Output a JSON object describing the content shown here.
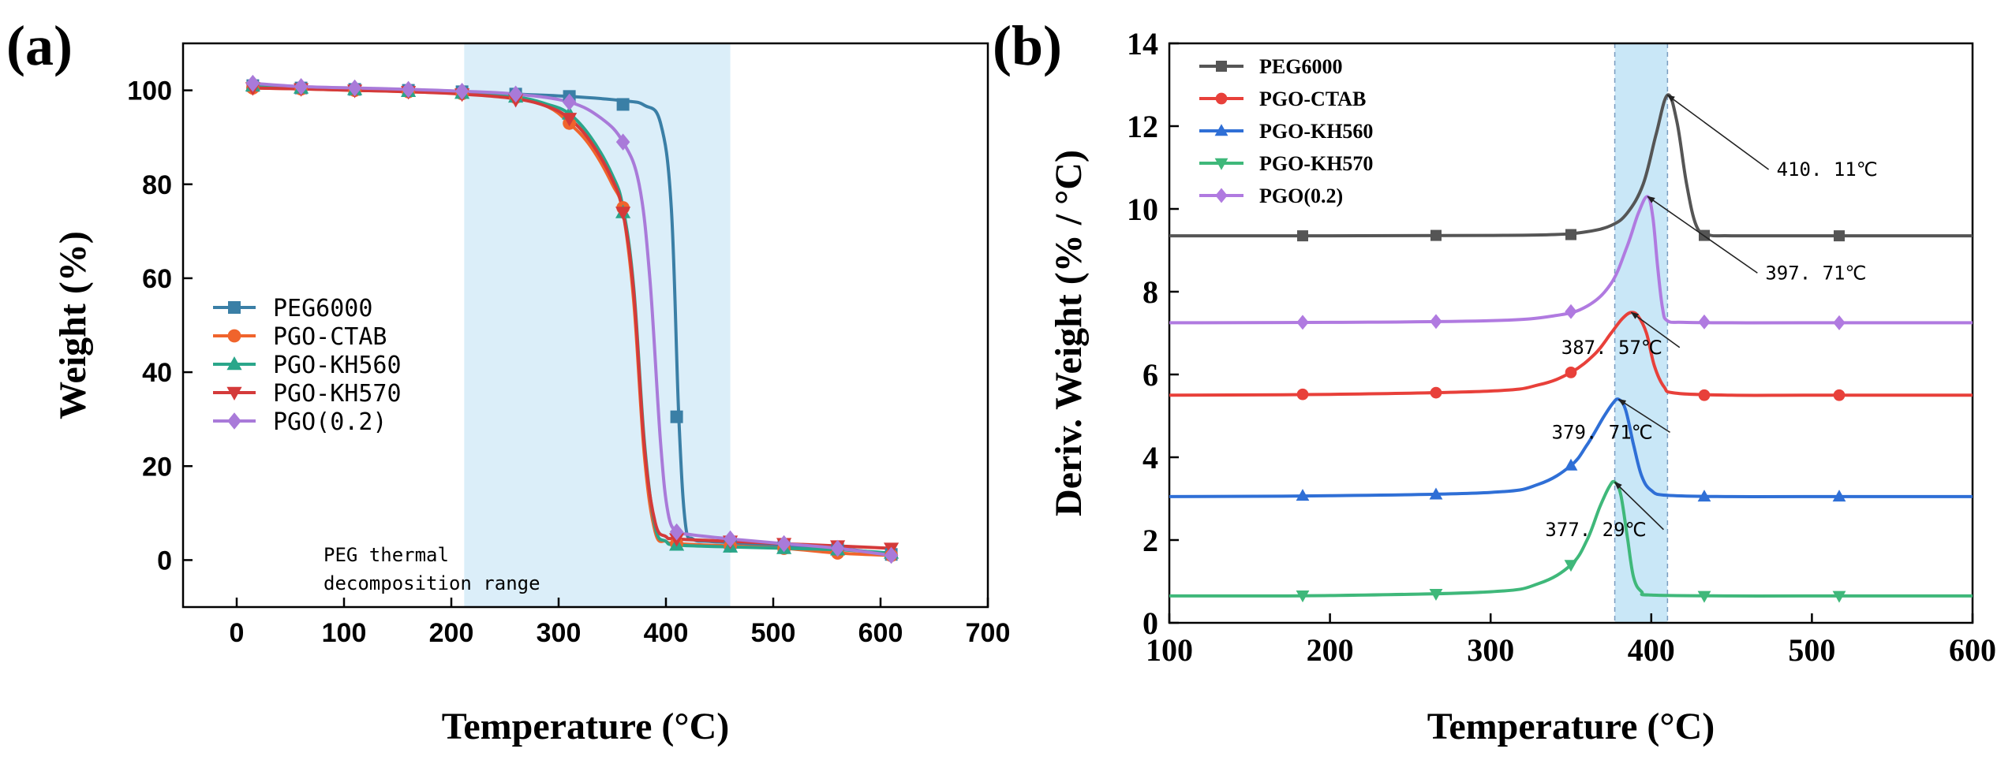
{
  "figure": {
    "panel_a_label": "(a)",
    "panel_b_label": "(b)"
  },
  "colors": {
    "PEG6000": "#3a7fa6",
    "PGO-CTAB": "#f0642c",
    "PGO-KH560": "#2aa68a",
    "PGO-KH570": "#d43a3a",
    "PGO(0.2)": "#a97ad9",
    "shade": "#cfe8f7",
    "b_PEG6000": "#555555",
    "b_PGO-CTAB": "#e8403a",
    "b_PGO-KH560": "#2f6fd6",
    "b_PGO-KH570": "#3fb87a",
    "b_PGO(0.2)": "#b07ae0"
  },
  "chart_data": [
    {
      "type": "line",
      "panel": "a",
      "title": "",
      "xlabel": "Temperature (°C)",
      "ylabel": "Weight (%)",
      "xlim": [
        -50,
        700
      ],
      "ylim": [
        -10,
        110
      ],
      "xticks": [
        0,
        100,
        200,
        300,
        400,
        500,
        600,
        700
      ],
      "yticks": [
        0,
        20,
        40,
        60,
        80,
        100
      ],
      "shaded_region": {
        "x": [
          212,
          460
        ],
        "label_line1": "PEG thermal",
        "label_line2": "decomposition range"
      },
      "legend": [
        "PEG6000",
        "PGO-CTAB",
        "PGO-KH560",
        "PGO-KH570",
        "PGO(0.2)"
      ],
      "series": [
        {
          "name": "PEG6000",
          "marker": "square",
          "x": [
            15,
            60,
            110,
            160,
            210,
            260,
            310,
            360,
            380,
            395,
            405,
            412,
            418,
            425,
            440,
            460,
            510,
            560,
            610
          ],
          "y": [
            101,
            100.5,
            100.2,
            100,
            99.7,
            99.2,
            98.7,
            97.8,
            96.8,
            93,
            75,
            30.5,
            8,
            4.5,
            4,
            3.7,
            3,
            2.5,
            1.2
          ],
          "markers_x": [
            15,
            60,
            110,
            160,
            210,
            260,
            310,
            360,
            410,
            460,
            510,
            560,
            610
          ],
          "markers_y": [
            101,
            100.5,
            100.2,
            100,
            99.7,
            99.2,
            98.7,
            97,
            30.5,
            3.7,
            3,
            2.5,
            1.2
          ]
        },
        {
          "name": "PGO-CTAB",
          "marker": "circle",
          "x": [
            15,
            60,
            110,
            160,
            210,
            260,
            290,
            310,
            330,
            350,
            360,
            370,
            380,
            390,
            400,
            410,
            460,
            510,
            560,
            610
          ],
          "y": [
            100.5,
            100.3,
            100,
            99.7,
            99.3,
            98.5,
            96.5,
            93,
            88,
            80,
            74,
            55,
            22,
            6,
            4,
            3.5,
            3,
            2.5,
            1.5,
            1
          ],
          "markers_x": [
            15,
            60,
            110,
            160,
            210,
            260,
            310,
            360,
            410,
            460,
            510,
            560,
            610
          ],
          "markers_y": [
            100.5,
            100.3,
            100,
            99.7,
            99.3,
            98.5,
            93,
            75,
            3.5,
            3,
            2.5,
            1.5,
            1
          ]
        },
        {
          "name": "PGO-KH560",
          "marker": "triangle-up",
          "x": [
            15,
            60,
            110,
            160,
            210,
            260,
            290,
            310,
            330,
            350,
            360,
            370,
            380,
            390,
            400,
            410,
            460,
            510,
            560,
            610
          ],
          "y": [
            101,
            100.5,
            100.2,
            99.8,
            99.4,
            98.6,
            97,
            95,
            90,
            82,
            75,
            58,
            25,
            7,
            4,
            3.2,
            2.8,
            2.5,
            2.2,
            1.5
          ],
          "markers_x": [
            15,
            60,
            110,
            160,
            210,
            260,
            310,
            360,
            410,
            460,
            510,
            560,
            610
          ],
          "markers_y": [
            101,
            100.5,
            100.2,
            99.8,
            99.4,
            98.6,
            95,
            74,
            3.2,
            2.8,
            2.5,
            2.2,
            1.5
          ]
        },
        {
          "name": "PGO-KH570",
          "marker": "triangle-down",
          "x": [
            15,
            60,
            110,
            160,
            210,
            260,
            290,
            310,
            330,
            350,
            360,
            370,
            380,
            390,
            400,
            410,
            460,
            510,
            560,
            610
          ],
          "y": [
            100.5,
            100.3,
            100,
            99.7,
            99.2,
            98.2,
            96.5,
            94,
            89,
            81,
            74,
            57,
            24,
            8,
            5,
            4.5,
            4,
            3.5,
            3,
            2.5
          ],
          "markers_x": [
            15,
            60,
            110,
            160,
            210,
            260,
            310,
            360,
            410,
            460,
            510,
            560,
            610
          ],
          "markers_y": [
            100.5,
            100.3,
            100,
            99.7,
            99.2,
            98,
            94,
            74,
            4.5,
            4,
            3.5,
            3,
            2.5
          ]
        },
        {
          "name": "PGO(0.2)",
          "marker": "diamond",
          "x": [
            15,
            60,
            110,
            160,
            210,
            260,
            310,
            340,
            360,
            375,
            385,
            395,
            402,
            410,
            420,
            460,
            510,
            560,
            610
          ],
          "y": [
            101.5,
            100.8,
            100.5,
            100.2,
            99.8,
            99.2,
            97.5,
            94,
            89,
            80,
            60,
            25,
            10,
            6,
            5.5,
            4.5,
            3.5,
            2.5,
            1
          ],
          "markers_x": [
            15,
            60,
            110,
            160,
            210,
            260,
            310,
            360,
            410,
            460,
            510,
            560,
            610
          ],
          "markers_y": [
            101.5,
            100.8,
            100.5,
            100.2,
            99.8,
            99.2,
            97.5,
            89,
            6,
            4.5,
            3.5,
            2.5,
            1
          ]
        }
      ]
    },
    {
      "type": "line",
      "panel": "b",
      "title": "",
      "xlabel": "Temperature (°C)",
      "ylabel": "Deriv. Weight (% / °C)",
      "xlim": [
        100,
        600
      ],
      "ylim": [
        0,
        14
      ],
      "xticks": [
        100,
        200,
        300,
        400,
        500,
        600
      ],
      "yticks": [
        0,
        2,
        4,
        6,
        8,
        10,
        12,
        14
      ],
      "shaded_region": {
        "x": [
          377.29,
          410.11
        ]
      },
      "legend": [
        "PEG6000",
        "PGO-CTAB",
        "PGO-KH560",
        "PGO-KH570",
        "PGO(0.2)"
      ],
      "annotations": [
        {
          "text": "410. 11℃",
          "point": [
            410.11,
            12.75
          ],
          "text_at": [
            478,
            10.8
          ]
        },
        {
          "text": "397. 71℃",
          "point": [
            397.71,
            10.3
          ],
          "text_at": [
            471,
            8.3
          ]
        },
        {
          "text": "387. 57℃",
          "point": [
            387.57,
            7.5
          ],
          "text_at": [
            344,
            6.5
          ]
        },
        {
          "text": "379. 71℃",
          "point": [
            379.71,
            5.4
          ],
          "text_at": [
            338,
            4.45
          ]
        },
        {
          "text": "377. 29℃",
          "point": [
            377.29,
            3.4
          ],
          "text_at": [
            334,
            2.1
          ]
        }
      ],
      "series": [
        {
          "name": "PEG6000",
          "marker": "square",
          "baseline": 9.35,
          "x": [
            100,
            200,
            300,
            340,
            360,
            375,
            385,
            395,
            403,
            410.11,
            416,
            422,
            428,
            435,
            450,
            500,
            600
          ],
          "y": [
            9.35,
            9.35,
            9.36,
            9.38,
            9.45,
            9.6,
            9.9,
            10.6,
            11.8,
            12.75,
            12.1,
            10.6,
            9.6,
            9.38,
            9.35,
            9.35,
            9.35
          ],
          "markers_x": [
            183,
            266,
            350,
            433,
            517
          ],
          "markers_y": [
            9.35,
            9.36,
            9.38,
            9.36,
            9.35
          ]
        },
        {
          "name": "PGO-CTAB",
          "marker": "circle",
          "baseline": 5.5,
          "x": [
            100,
            200,
            300,
            330,
            350,
            365,
            375,
            382,
            387.57,
            392,
            397,
            402,
            408,
            415,
            450,
            500,
            600
          ],
          "y": [
            5.5,
            5.52,
            5.6,
            5.75,
            6.05,
            6.5,
            7.0,
            7.35,
            7.5,
            7.4,
            7.0,
            6.2,
            5.7,
            5.55,
            5.5,
            5.5,
            5.5
          ],
          "markers_x": [
            183,
            266,
            350,
            433,
            517
          ],
          "markers_y": [
            5.52,
            5.56,
            6.05,
            5.5,
            5.5
          ]
        },
        {
          "name": "PGO-KH560",
          "marker": "triangle-up",
          "baseline": 3.05,
          "x": [
            100,
            200,
            300,
            330,
            350,
            360,
            370,
            376,
            379.71,
            384,
            389,
            394,
            400,
            410,
            450,
            500,
            600
          ],
          "y": [
            3.05,
            3.07,
            3.15,
            3.35,
            3.8,
            4.3,
            4.95,
            5.3,
            5.4,
            5.15,
            4.3,
            3.55,
            3.2,
            3.08,
            3.05,
            3.05,
            3.05
          ],
          "markers_x": [
            183,
            266,
            350,
            433,
            517
          ],
          "markers_y": [
            3.07,
            3.1,
            3.8,
            3.05,
            3.05
          ]
        },
        {
          "name": "PGO-KH570",
          "marker": "triangle-down",
          "baseline": 0.65,
          "x": [
            100,
            200,
            300,
            330,
            350,
            360,
            368,
            374,
            377.29,
            381,
            385,
            389,
            394,
            400,
            450,
            500,
            600
          ],
          "y": [
            0.65,
            0.66,
            0.75,
            0.95,
            1.4,
            2.0,
            2.8,
            3.3,
            3.4,
            3.1,
            2.1,
            1.1,
            0.75,
            0.67,
            0.65,
            0.65,
            0.65
          ],
          "markers_x": [
            183,
            266,
            350,
            433,
            517
          ],
          "markers_y": [
            0.66,
            0.7,
            1.4,
            0.65,
            0.65
          ]
        },
        {
          "name": "PGO(0.2)",
          "marker": "diamond",
          "baseline": 7.25,
          "x": [
            100,
            200,
            300,
            340,
            360,
            375,
            385,
            392,
            397.71,
            401,
            404,
            407,
            410,
            420,
            450,
            500,
            600
          ],
          "y": [
            7.25,
            7.26,
            7.3,
            7.42,
            7.65,
            8.2,
            9.1,
            9.9,
            10.3,
            9.8,
            8.6,
            7.6,
            7.3,
            7.26,
            7.25,
            7.25,
            7.25
          ],
          "markers_x": [
            183,
            266,
            350,
            433,
            517
          ],
          "markers_y": [
            7.26,
            7.28,
            7.52,
            7.27,
            7.25
          ]
        }
      ]
    }
  ]
}
